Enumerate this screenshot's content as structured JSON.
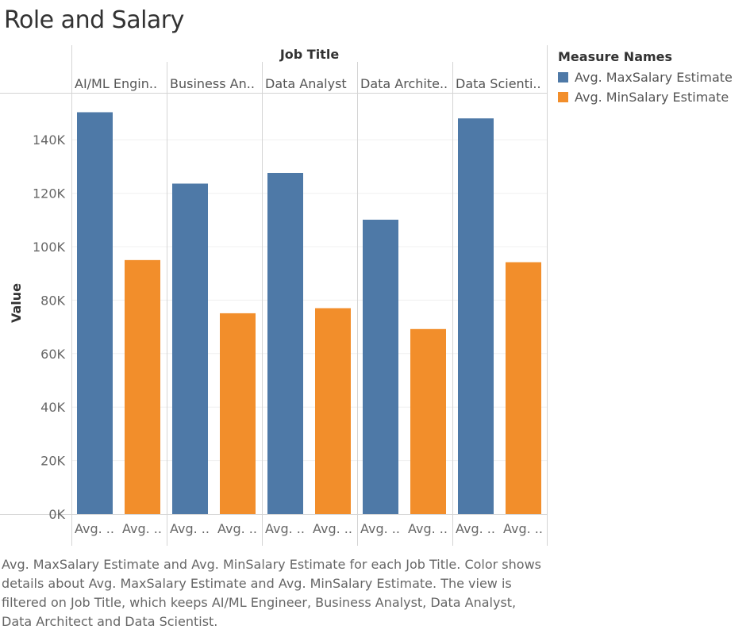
{
  "title": "Role and Salary",
  "header_label": "Job Title",
  "ylabel": "Value",
  "legend": {
    "title": "Measure Names",
    "items": [
      {
        "label": "Avg. MaxSalary Estimate",
        "color": "#4e79a7"
      },
      {
        "label": "Avg. MinSalary Estimate",
        "color": "#f28e2b"
      }
    ]
  },
  "caption": "Avg. MaxSalary Estimate and Avg. MinSalary Estimate for each Job Title.  Color shows details about Avg. MaxSalary Estimate and Avg. MinSalary Estimate. The view is filtered on Job Title, which keeps AI/ML Engineer, Business Analyst, Data Analyst, Data Architect and Data Scientist.",
  "chart_data": {
    "type": "bar",
    "categories": [
      "AI/ML Engin..",
      "Business An..",
      "Data Analyst",
      "Data Archite..",
      "Data Scienti.."
    ],
    "bar_labels": [
      "Avg. ..",
      "Avg. .."
    ],
    "series": [
      {
        "name": "Avg. MaxSalary Estimate",
        "color": "#4e79a7",
        "values": [
          150300,
          123600,
          127600,
          110100,
          148000
        ]
      },
      {
        "name": "Avg. MinSalary Estimate",
        "color": "#f28e2b",
        "values": [
          95000,
          75100,
          77000,
          69200,
          94200
        ]
      }
    ],
    "yticks": [
      "0K",
      "20K",
      "40K",
      "60K",
      "80K",
      "100K",
      "120K",
      "140K"
    ],
    "ytick_values": [
      0,
      20000,
      40000,
      60000,
      80000,
      100000,
      120000,
      140000
    ],
    "ylim": [
      0,
      158000
    ],
    "grid": true
  }
}
